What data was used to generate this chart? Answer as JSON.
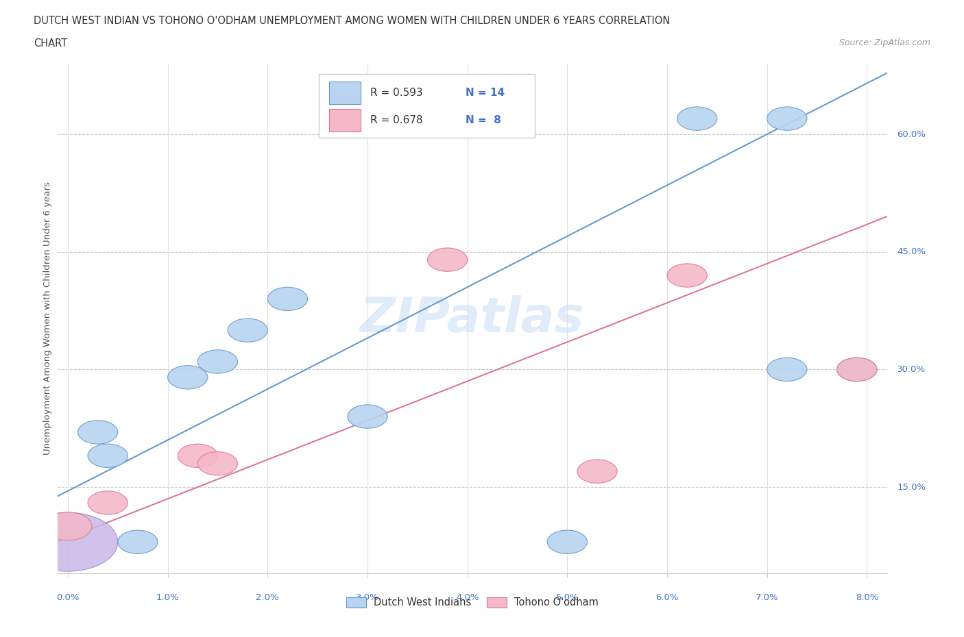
{
  "title_line1": "DUTCH WEST INDIAN VS TOHONO O'ODHAM UNEMPLOYMENT AMONG WOMEN WITH CHILDREN UNDER 6 YEARS CORRELATION",
  "title_line2": "CHART",
  "source": "Source: ZipAtlas.com",
  "ylabel": "Unemployment Among Women with Children Under 6 years",
  "ytick_labels": [
    "15.0%",
    "30.0%",
    "45.0%",
    "60.0%"
  ],
  "ytick_values": [
    0.15,
    0.3,
    0.45,
    0.6
  ],
  "xtick_values": [
    0.0,
    0.01,
    0.02,
    0.03,
    0.04,
    0.05,
    0.06,
    0.07,
    0.08
  ],
  "xlim": [
    -0.001,
    0.082
  ],
  "ylim": [
    0.04,
    0.69
  ],
  "dutch_x": [
    0.0,
    0.003,
    0.004,
    0.007,
    0.012,
    0.015,
    0.018,
    0.022,
    0.03,
    0.05,
    0.063,
    0.072,
    0.072,
    0.079
  ],
  "dutch_y": [
    0.08,
    0.22,
    0.19,
    0.08,
    0.29,
    0.31,
    0.35,
    0.39,
    0.24,
    0.08,
    0.62,
    0.62,
    0.3,
    0.3
  ],
  "tohono_x": [
    0.0,
    0.004,
    0.013,
    0.015,
    0.038,
    0.053,
    0.062,
    0.079
  ],
  "tohono_y": [
    0.1,
    0.13,
    0.19,
    0.18,
    0.44,
    0.17,
    0.42,
    0.3
  ],
  "dutch_color": "#b8d4f0",
  "tohono_color": "#f5b8c8",
  "dutch_line_color": "#6699cc",
  "tohono_line_color": "#dd7799",
  "legend_r_dutch": "R = 0.593",
  "legend_n_dutch": "N = 14",
  "legend_r_tohono": "R = 0.678",
  "legend_n_tohono": "N =  8",
  "legend_label_dutch": "Dutch West Indians",
  "legend_label_tohono": "Tohono O'odham",
  "watermark": "ZIPatlas",
  "dutch_slope": 6.5,
  "dutch_intercept": 0.145,
  "tohono_slope": 5.0,
  "tohono_intercept": 0.085,
  "background_color": "#ffffff",
  "grid_color_h": "#c8c8c8",
  "grid_color_v": "#e0e0e0",
  "title_color": "#333333",
  "axis_label_color": "#555555",
  "legend_value_color": "#4472c4",
  "tick_label_color": "#4472c4"
}
